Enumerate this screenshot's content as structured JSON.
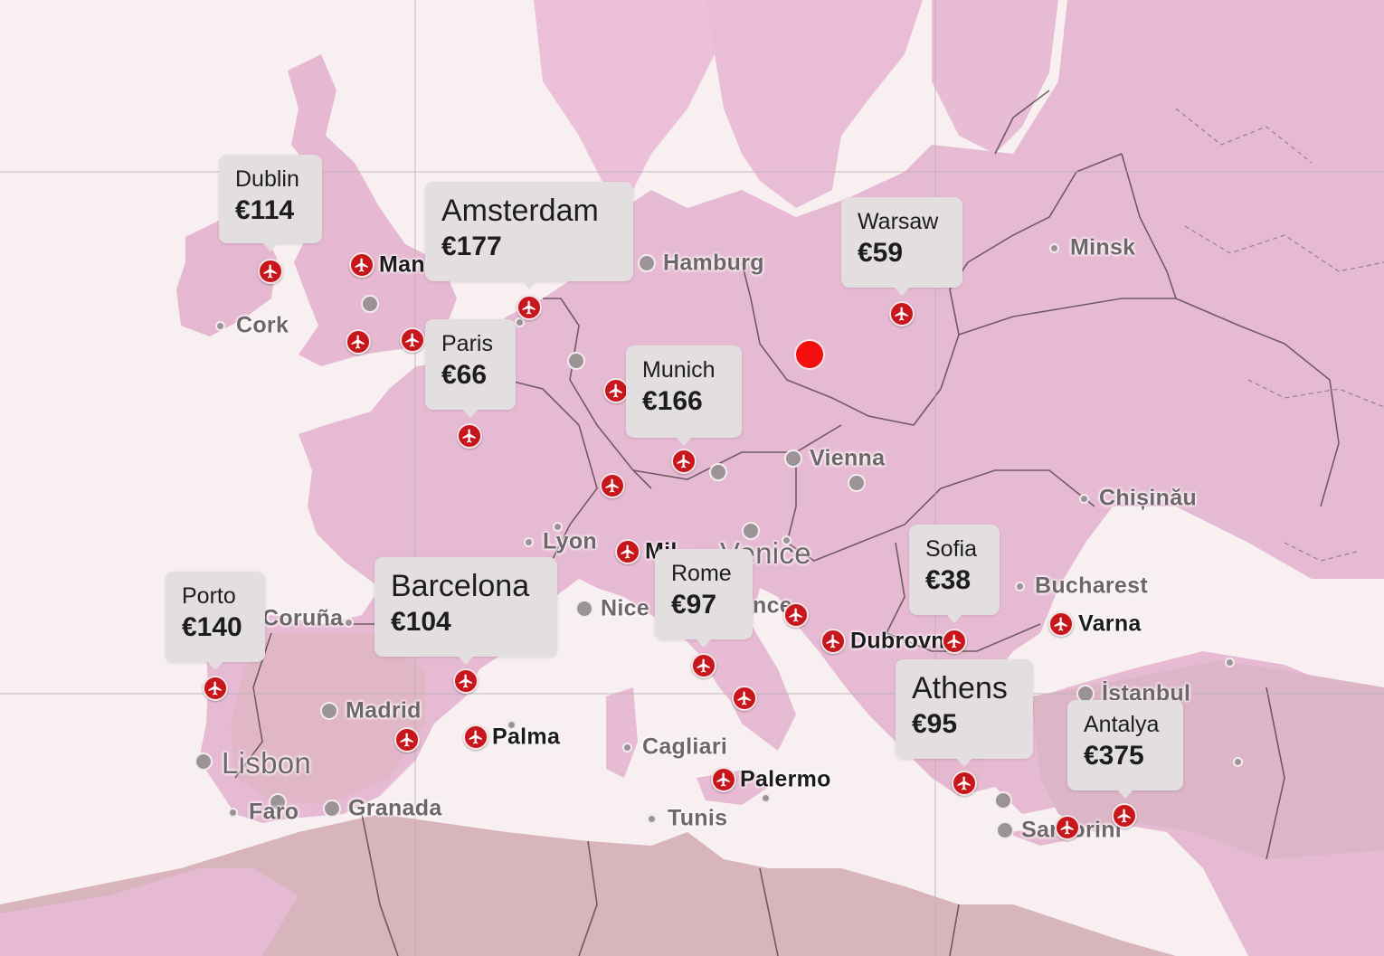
{
  "map": {
    "accent": "#c8161d",
    "land_color": "#e8bcd6",
    "sea_color": "#f7eff0",
    "origin_marker": {
      "name": "origin-location-dot",
      "color": "#f50e0e"
    }
  },
  "price_cards": [
    {
      "city": "Dublin",
      "price": "€114",
      "size": "normal"
    },
    {
      "city": "Amsterdam",
      "price": "€177",
      "size": "large"
    },
    {
      "city": "Warsaw",
      "price": "€59",
      "size": "normal"
    },
    {
      "city": "Paris",
      "price": "€66",
      "size": "normal"
    },
    {
      "city": "Munich",
      "price": "€166",
      "size": "normal"
    },
    {
      "city": "Porto",
      "price": "€140",
      "size": "normal"
    },
    {
      "city": "Barcelona",
      "price": "€104",
      "size": "large"
    },
    {
      "city": "Rome",
      "price": "€97",
      "size": "normal"
    },
    {
      "city": "Sofia",
      "price": "€38",
      "size": "normal"
    },
    {
      "city": "Athens",
      "price": "€95",
      "size": "large"
    },
    {
      "city": "Antalya",
      "price": "€375",
      "size": "normal"
    }
  ],
  "airport_labels": [
    {
      "text": "Man"
    },
    {
      "text": "Mil"
    },
    {
      "text": "Palma"
    },
    {
      "text": "Palermo"
    },
    {
      "text": "Dubrovn"
    },
    {
      "text": "Varna"
    }
  ],
  "city_labels": [
    {
      "text": "Cork"
    },
    {
      "text": "Hamburg"
    },
    {
      "text": "Minsk"
    },
    {
      "text": "Vienna"
    },
    {
      "text": "Chișinău"
    },
    {
      "text": "Lyon"
    },
    {
      "text": "Venice"
    },
    {
      "text": "Coruña"
    },
    {
      "text": "Nice"
    },
    {
      "text": "nce"
    },
    {
      "text": "Bucharest"
    },
    {
      "text": "İstanbul"
    },
    {
      "text": "Madrid"
    },
    {
      "text": "Lisbon"
    },
    {
      "text": "Cagliari"
    },
    {
      "text": "Faro"
    },
    {
      "text": "Granada"
    },
    {
      "text": "Tunis"
    },
    {
      "text": "Santorini"
    }
  ]
}
